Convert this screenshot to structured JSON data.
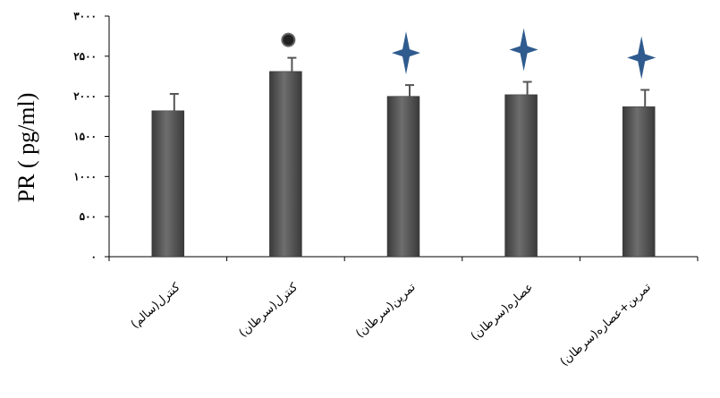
{
  "chart_data": {
    "type": "bar",
    "title": "",
    "xlabel": "",
    "ylabel": "PR ( pg/ml)",
    "ylim": [
      0,
      3000
    ],
    "ytick_values": [
      0,
      500,
      1000,
      1500,
      2000,
      2500,
      3000
    ],
    "ytick_labels": [
      "۰",
      "۵۰۰",
      "۱۰۰۰",
      "۱۵۰۰",
      "۲۰۰۰",
      "۲۵۰۰",
      "۳۰۰۰"
    ],
    "categories": [
      "کنترل(سالم)",
      "کنترل(سرطان)",
      "تمرین(سرطان)",
      "عصاره(سرطان)",
      "تمرین+عصاره(سرطان)"
    ],
    "values": [
      1820,
      2310,
      2000,
      2020,
      1870
    ],
    "error": [
      210,
      170,
      140,
      160,
      210
    ],
    "markers": [
      {
        "category_index": 1,
        "symbol": "circle"
      },
      {
        "category_index": 2,
        "symbol": "star"
      },
      {
        "category_index": 3,
        "symbol": "star"
      },
      {
        "category_index": 4,
        "symbol": "star"
      }
    ],
    "grid": false,
    "legend": "none",
    "colors": {
      "bar": "#4a4a4a",
      "bar_light": "#6e6e6e",
      "error": "#555555",
      "star": "#2f5b8e",
      "circle": "#222222"
    }
  }
}
